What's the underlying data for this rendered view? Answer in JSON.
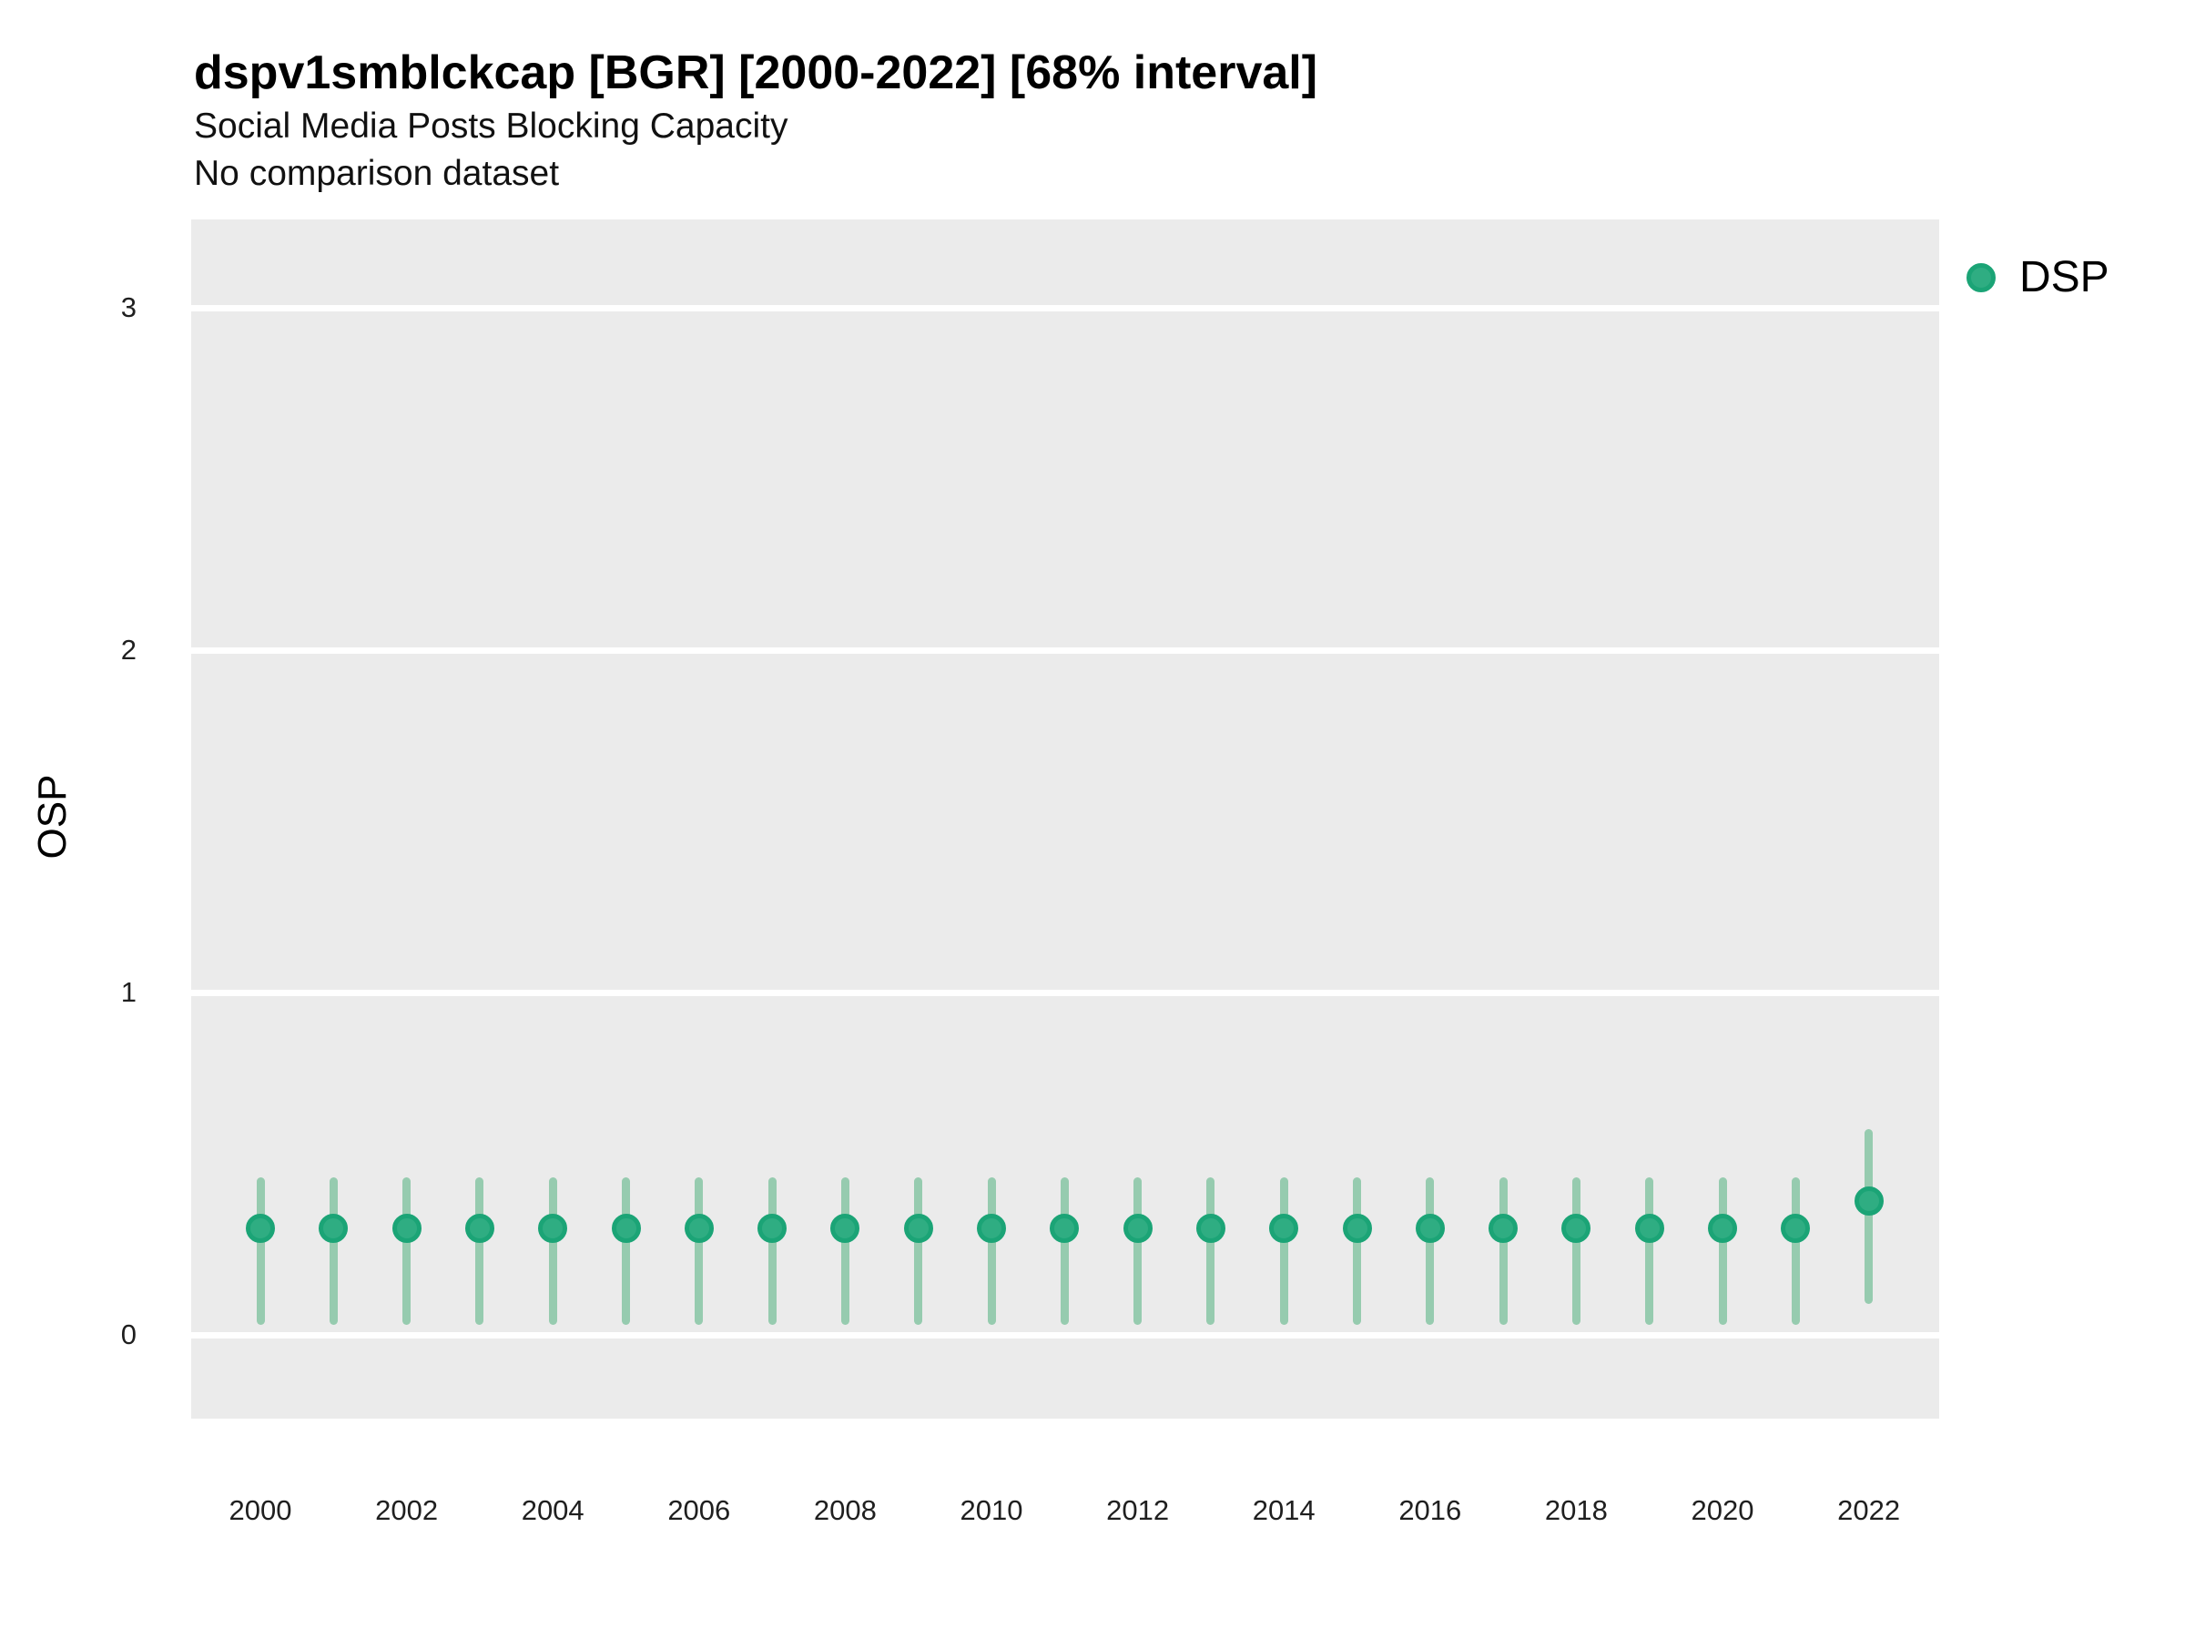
{
  "header": {
    "title": "dspv1smblckcap [BGR] [2000-2022] [68% interval]",
    "subtitle": "Social Media Posts Blocking Capacity",
    "note": "No comparison dataset"
  },
  "axes": {
    "y_title": "OSP",
    "y_ticks": [
      0,
      1,
      2,
      3
    ],
    "x_ticks": [
      2000,
      2002,
      2004,
      2006,
      2008,
      2010,
      2012,
      2014,
      2016,
      2018,
      2020,
      2022
    ]
  },
  "legend": {
    "items": [
      {
        "label": "DSP",
        "marker": "circle-icon"
      }
    ]
  },
  "colors": {
    "panel_background": "#EBEBEB",
    "gridline": "#FFFFFF",
    "point_fill": "#2FAD82",
    "point_stroke": "#1BA476",
    "errorbar": "#96CBAF",
    "text": "#000000"
  },
  "chart_data": {
    "type": "scatter",
    "title": "dspv1smblckcap [BGR] [2000-2022] [68% interval]",
    "subtitle": "Social Media Posts Blocking Capacity",
    "note": "No comparison dataset",
    "xlabel": "",
    "ylabel": "OSP",
    "ylim": [
      -0.25,
      3.26
    ],
    "y_ticks": [
      0,
      1,
      2,
      3
    ],
    "grid": "horizontal-major-only",
    "legend_position": "right-top",
    "interval": "68%",
    "x": [
      2000,
      2001,
      2002,
      2003,
      2004,
      2005,
      2006,
      2007,
      2008,
      2009,
      2010,
      2011,
      2012,
      2013,
      2014,
      2015,
      2016,
      2017,
      2018,
      2019,
      2020,
      2021,
      2022
    ],
    "series": [
      {
        "name": "DSP",
        "values": [
          0.31,
          0.31,
          0.31,
          0.31,
          0.31,
          0.31,
          0.31,
          0.31,
          0.31,
          0.31,
          0.31,
          0.31,
          0.31,
          0.31,
          0.31,
          0.31,
          0.31,
          0.31,
          0.31,
          0.31,
          0.31,
          0.31,
          0.39
        ],
        "lower_68": [
          0.03,
          0.03,
          0.03,
          0.03,
          0.03,
          0.03,
          0.03,
          0.03,
          0.03,
          0.03,
          0.03,
          0.03,
          0.03,
          0.03,
          0.03,
          0.03,
          0.03,
          0.03,
          0.03,
          0.03,
          0.03,
          0.03,
          0.09
        ],
        "upper_68": [
          0.46,
          0.46,
          0.46,
          0.46,
          0.46,
          0.46,
          0.46,
          0.46,
          0.46,
          0.46,
          0.46,
          0.46,
          0.46,
          0.46,
          0.46,
          0.46,
          0.46,
          0.46,
          0.46,
          0.46,
          0.46,
          0.46,
          0.6
        ]
      }
    ]
  }
}
